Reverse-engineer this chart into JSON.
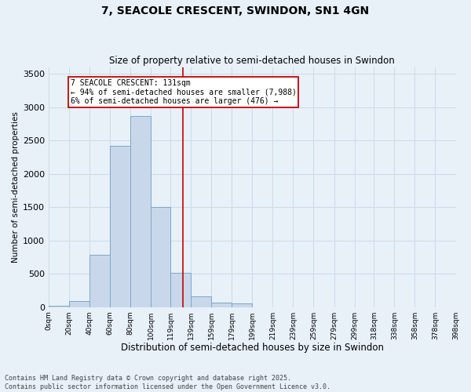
{
  "title": "7, SEACOLE CRESCENT, SWINDON, SN1 4GN",
  "subtitle": "Size of property relative to semi-detached houses in Swindon",
  "xlabel": "Distribution of semi-detached houses by size in Swindon",
  "ylabel": "Number of semi-detached properties",
  "footnote": "Contains HM Land Registry data © Crown copyright and database right 2025.\nContains public sector information licensed under the Open Government Licence v3.0.",
  "property_size": 131,
  "annotation_title": "7 SEACOLE CRESCENT: 131sqm",
  "annotation_line1": "← 94% of semi-detached houses are smaller (7,988)",
  "annotation_line2": "6% of semi-detached houses are larger (476) →",
  "bar_color": "#c8d8ea",
  "bar_edge_color": "#7aa8c8",
  "vline_color": "#cc0000",
  "annotation_box_color": "#cc0000",
  "annotation_bg": "#ffffff",
  "grid_color": "#c8dcea",
  "background_color": "#e8f0f8",
  "bins": [
    0,
    20,
    40,
    60,
    80,
    100,
    119,
    139,
    159,
    179,
    199,
    219,
    239,
    259,
    279,
    299,
    318,
    338,
    358,
    378,
    398
  ],
  "bin_labels": [
    "0sqm",
    "20sqm",
    "40sqm",
    "60sqm",
    "80sqm",
    "100sqm",
    "119sqm",
    "139sqm",
    "159sqm",
    "179sqm",
    "199sqm",
    "219sqm",
    "239sqm",
    "259sqm",
    "279sqm",
    "299sqm",
    "318sqm",
    "338sqm",
    "358sqm",
    "378sqm",
    "398sqm"
  ],
  "counts": [
    15,
    90,
    780,
    2420,
    2870,
    1500,
    510,
    160,
    70,
    50,
    0,
    0,
    0,
    0,
    0,
    0,
    0,
    0,
    0,
    0
  ],
  "ylim": [
    0,
    3600
  ],
  "yticks": [
    0,
    500,
    1000,
    1500,
    2000,
    2500,
    3000,
    3500
  ]
}
